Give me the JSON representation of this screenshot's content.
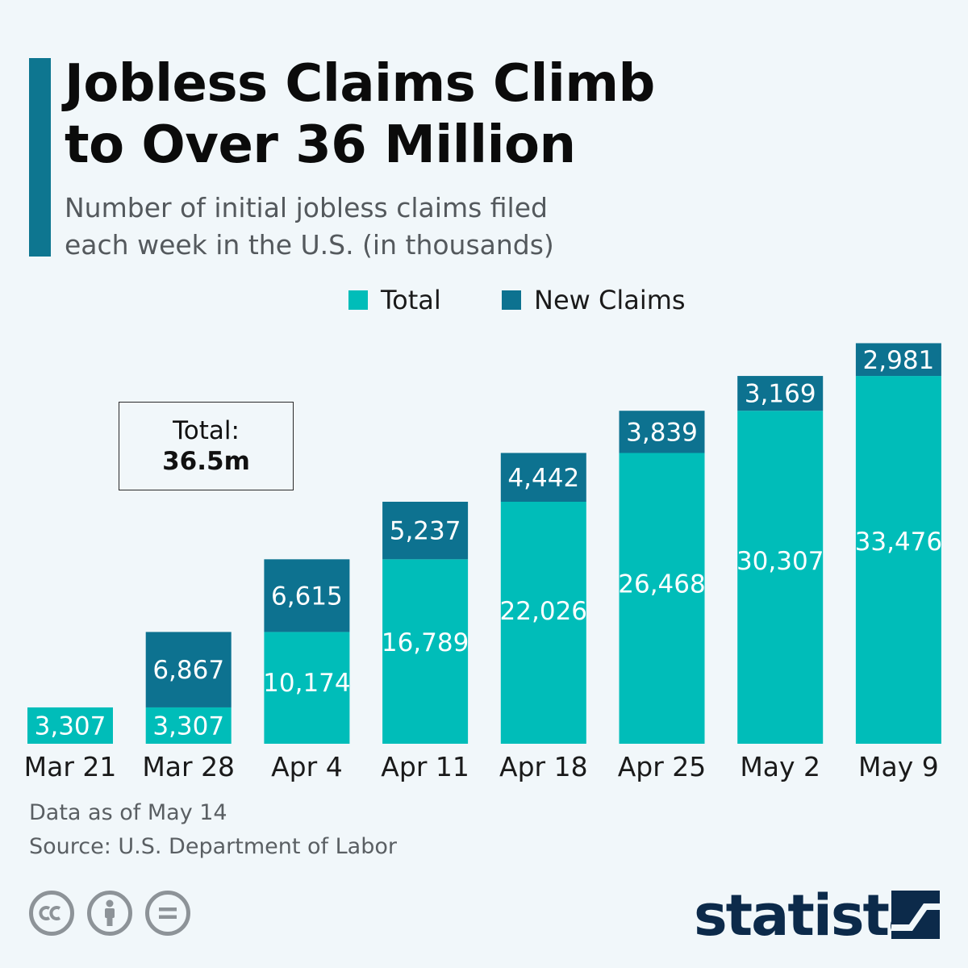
{
  "header": {
    "title_line1": "Jobless Claims Climb",
    "title_line2": "to Over 36 Million",
    "subtitle_line1": "Number of initial jobless claims filed",
    "subtitle_line2": "each week in the U.S. (in thousands)"
  },
  "legend": {
    "total_label": "Total",
    "new_label": "New Claims"
  },
  "colors": {
    "total": "#00bdb9",
    "new_claims": "#0d7290",
    "accent": "#0e7690",
    "background": "#f1f7fa",
    "brand": "#0c2a4a"
  },
  "total_box": {
    "label": "Total:",
    "value": "36.5m"
  },
  "chart_data": {
    "type": "bar",
    "stacked": true,
    "categories": [
      "Mar 21",
      "Mar 28",
      "Apr 4",
      "Apr 11",
      "Apr 18",
      "Apr 25",
      "May 2",
      "May 9"
    ],
    "series": [
      {
        "name": "Total",
        "values": [
          3307,
          3307,
          10174,
          16789,
          22026,
          26468,
          30307,
          33476
        ]
      },
      {
        "name": "New Claims",
        "values": [
          null,
          6867,
          6615,
          5237,
          4442,
          3839,
          3169,
          2981
        ]
      }
    ],
    "title": "Jobless Claims Climb to Over 36 Million",
    "ylim": [
      0,
      37000
    ],
    "grid": false,
    "legend_position": "top"
  },
  "footer": {
    "note": "Data as of May 14",
    "source": "Source: U.S. Department of Labor",
    "brand": "statista",
    "license_icons": [
      "cc-icon",
      "attribution-icon",
      "no-derivatives-icon"
    ]
  }
}
